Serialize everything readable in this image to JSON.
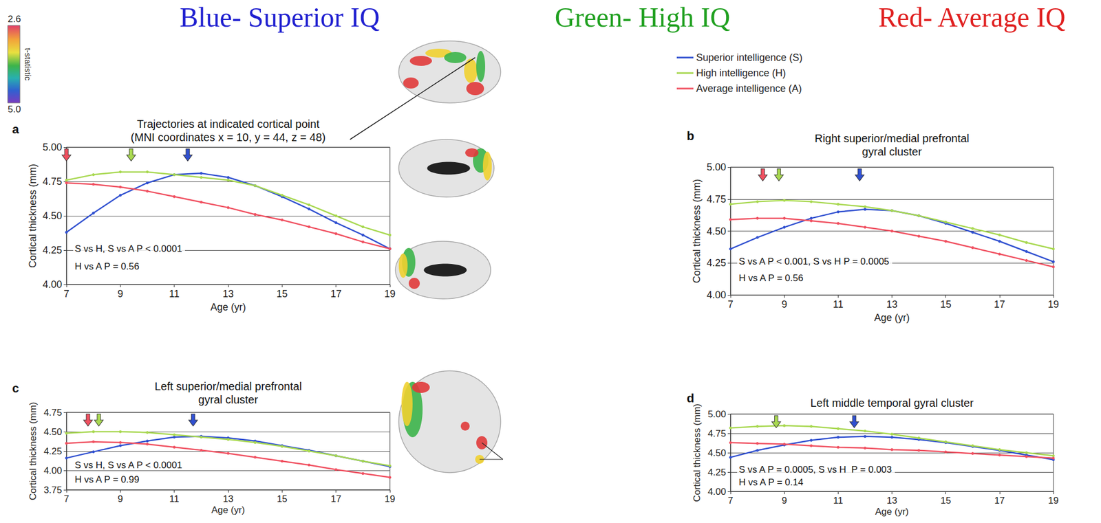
{
  "header": [
    {
      "text": "Blue- Superior IQ",
      "color": "#2020d0"
    },
    {
      "text": "Green- High IQ",
      "color": "#20a020"
    },
    {
      "text": "Red- Average IQ",
      "color": "#e02020"
    }
  ],
  "colorbar": {
    "label": "t-statistic",
    "range": [
      2.6,
      5.0
    ],
    "ticks": [
      2.6,
      {
        "value": 5,
        "label": "5.0"
      }
    ]
  },
  "chart_data": [
    {
      "letter": "a",
      "type": "line",
      "title": "Trajectories at indicated cortical point",
      "subtitle": "(MNI coordinates x = 10, y = 44, z = 48)",
      "x_label": "Age (yr)",
      "y_label": "Cortical thickness (mm)",
      "xlim": [
        7,
        19
      ],
      "xticks": [
        7,
        9,
        11,
        13,
        15,
        17,
        19
      ],
      "ylim": [
        4,
        5
      ],
      "yticks": [
        {
          "value": 4,
          "label": "4.00"
        },
        4.25,
        {
          "value": 4.5,
          "label": "4.50"
        },
        4.75,
        {
          "value": 5,
          "label": "5.00"
        }
      ],
      "grid": true,
      "marker": "circle",
      "legend": "top-right",
      "annotations": [
        "S vs H, S vs A P < 0.0001",
        "H vs A P = 0.56"
      ],
      "x": [
        7,
        8,
        9,
        10,
        11,
        12,
        13,
        14,
        15,
        16,
        17,
        18,
        19
      ],
      "series": [
        {
          "name": "Superior intelligence (S)",
          "color": "#3050d0",
          "peak_age": 11.5,
          "values": [
            4.38,
            4.52,
            4.65,
            4.74,
            4.8,
            4.81,
            4.78,
            4.72,
            4.64,
            4.55,
            4.45,
            4.36,
            4.26
          ]
        },
        {
          "name": "High intelligence (H)",
          "color": "#a8d850",
          "peak_age": 9.4,
          "values": [
            4.76,
            4.8,
            4.82,
            4.82,
            4.8,
            4.78,
            4.76,
            4.72,
            4.65,
            4.58,
            4.5,
            4.42,
            4.36
          ]
        },
        {
          "name": "Average intelligence (A)",
          "color": "#f05060",
          "peak_age": 7,
          "values": [
            4.74,
            4.73,
            4.71,
            4.68,
            4.64,
            4.6,
            4.56,
            4.51,
            4.47,
            4.42,
            4.37,
            4.31,
            4.26
          ]
        }
      ]
    },
    {
      "letter": "b",
      "type": "line",
      "title": "Right superior/medial prefrontal gyral cluster",
      "x_label": "Age (yr)",
      "y_label": "Cortical thickness (mm)",
      "xlim": [
        7,
        19
      ],
      "xticks": [
        7,
        9,
        11,
        13,
        15,
        17,
        19
      ],
      "ylim": [
        4,
        5
      ],
      "yticks": [
        {
          "value": 4,
          "label": "4.00"
        },
        4.25,
        {
          "value": 4.5,
          "label": "4.50"
        },
        4.75,
        {
          "value": 5,
          "label": "5.00"
        }
      ],
      "grid": true,
      "marker": "circle",
      "annotations": [
        "S vs A P < 0.001, S vs H P = 0.0005",
        "H vs A P = 0.56"
      ],
      "x": [
        7,
        8,
        9,
        10,
        11,
        12,
        13,
        14,
        15,
        16,
        17,
        18,
        19
      ],
      "series": [
        {
          "name": "Superior intelligence (S)",
          "color": "#3050d0",
          "peak_age": 11.8,
          "values": [
            4.36,
            4.45,
            4.53,
            4.6,
            4.65,
            4.67,
            4.66,
            4.62,
            4.56,
            4.49,
            4.42,
            4.34,
            4.26
          ]
        },
        {
          "name": "High intelligence (H)",
          "color": "#a8d850",
          "peak_age": 8.8,
          "values": [
            4.71,
            4.73,
            4.74,
            4.73,
            4.71,
            4.69,
            4.66,
            4.62,
            4.57,
            4.52,
            4.47,
            4.41,
            4.36
          ]
        },
        {
          "name": "Average intelligence (A)",
          "color": "#f05060",
          "peak_age": 8.2,
          "values": [
            4.59,
            4.6,
            4.6,
            4.58,
            4.56,
            4.53,
            4.5,
            4.46,
            4.42,
            4.37,
            4.32,
            4.27,
            4.22
          ]
        }
      ]
    },
    {
      "letter": "c",
      "type": "line",
      "title": "Left superior/medial prefrontal gyral cluster",
      "x_label": "Age (yr)",
      "y_label": "Cortical thickness (mm)",
      "xlim": [
        7,
        19
      ],
      "xticks": [
        7,
        9,
        11,
        13,
        15,
        17,
        19
      ],
      "ylim": [
        3.75,
        4.75
      ],
      "yticks": [
        3.75,
        {
          "value": 4,
          "label": "4.00"
        },
        4.25,
        {
          "value": 4.5,
          "label": "4.50"
        },
        4.75
      ],
      "grid": true,
      "marker": "circle",
      "annotations": [
        "S vs H, S vs A P < 0.0001",
        "H vs A P = 0.99"
      ],
      "x": [
        7,
        8,
        9,
        10,
        11,
        12,
        13,
        14,
        15,
        16,
        17,
        18,
        19
      ],
      "series": [
        {
          "name": "Superior intelligence (S)",
          "color": "#3050d0",
          "peak_age": 11.7,
          "values": [
            4.16,
            4.24,
            4.32,
            4.38,
            4.43,
            4.44,
            4.42,
            4.38,
            4.32,
            4.26,
            4.19,
            4.12,
            4.05
          ]
        },
        {
          "name": "High intelligence (H)",
          "color": "#a8d850",
          "peak_age": 8.2,
          "values": [
            4.48,
            4.5,
            4.5,
            4.49,
            4.46,
            4.43,
            4.4,
            4.36,
            4.31,
            4.25,
            4.19,
            4.12,
            4.06
          ]
        },
        {
          "name": "Average intelligence (A)",
          "color": "#f05060",
          "peak_age": 7.8,
          "values": [
            4.35,
            4.37,
            4.36,
            4.34,
            4.3,
            4.26,
            4.22,
            4.17,
            4.12,
            4.07,
            4.01,
            3.96,
            3.91
          ]
        }
      ]
    },
    {
      "letter": "d",
      "type": "line",
      "title": "Left middle temporal gyral cluster",
      "x_label": "Age (yr)",
      "y_label": "Cortical thickness (mm)",
      "xlim": [
        7,
        19
      ],
      "xticks": [
        7,
        9,
        11,
        13,
        15,
        17,
        19
      ],
      "ylim": [
        4,
        5
      ],
      "yticks": [
        {
          "value": 4,
          "label": "4.00"
        },
        4.25,
        {
          "value": 4.5,
          "label": "4.50"
        },
        4.75,
        {
          "value": 5,
          "label": "5.00"
        }
      ],
      "grid": true,
      "marker": "circle",
      "annotations": [
        "S vs A P = 0.0005, S vs H  P = 0.003",
        "H vs A P = 0.14"
      ],
      "x": [
        7,
        8,
        9,
        10,
        11,
        12,
        13,
        14,
        15,
        16,
        17,
        18,
        19
      ],
      "series": [
        {
          "name": "Superior intelligence (S)",
          "color": "#3050d0",
          "peak_age": 11.6,
          "values": [
            4.44,
            4.53,
            4.6,
            4.66,
            4.7,
            4.71,
            4.7,
            4.67,
            4.63,
            4.58,
            4.53,
            4.47,
            4.41
          ]
        },
        {
          "name": "High intelligence (H)",
          "color": "#a8d850",
          "peak_age": 8.7,
          "values": [
            4.82,
            4.84,
            4.85,
            4.84,
            4.81,
            4.78,
            4.74,
            4.69,
            4.64,
            4.59,
            4.54,
            4.5,
            4.46
          ]
        },
        {
          "name": "Average intelligence (A)",
          "color": "#f05060",
          "peak_age": null,
          "values": [
            4.63,
            4.62,
            4.61,
            4.59,
            4.57,
            4.56,
            4.54,
            4.53,
            4.51,
            4.49,
            4.47,
            4.45,
            4.43
          ]
        }
      ]
    }
  ]
}
